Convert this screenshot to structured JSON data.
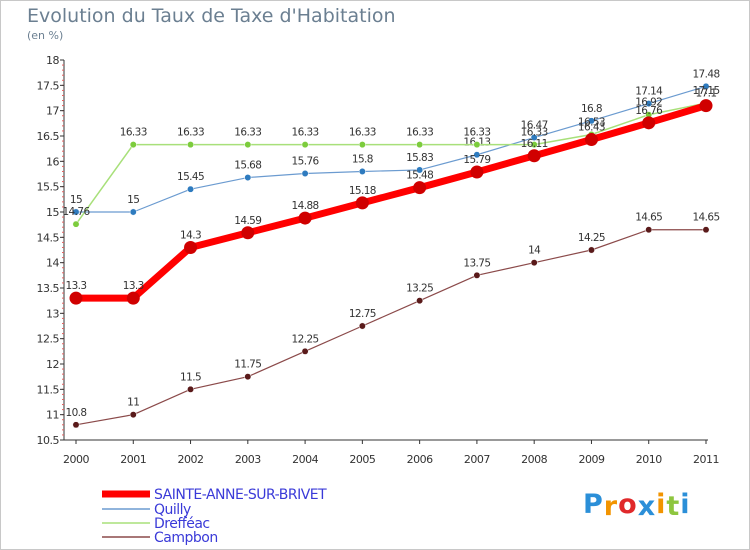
{
  "title": "Evolution du Taux de Taxe d'Habitation",
  "subtitle": "(en %)",
  "logo": {
    "text": "Proxiti",
    "letters": [
      "P",
      "r",
      "o",
      "x",
      "i",
      "t",
      "i"
    ],
    "colors": [
      "#2b8fd8",
      "#f29400",
      "#e0292b",
      "#2b8fd8",
      "#f29400",
      "#8ec63f",
      "#2b8fd8"
    ]
  },
  "chart_data": {
    "type": "line",
    "x": [
      2000,
      2001,
      2002,
      2003,
      2004,
      2005,
      2006,
      2007,
      2008,
      2009,
      2010,
      2011
    ],
    "ylim": [
      10.5,
      18
    ],
    "yticks": [
      10.5,
      11,
      11.5,
      12,
      12.5,
      13,
      13.5,
      14,
      14.5,
      15,
      15.5,
      16,
      16.5,
      17,
      17.5,
      18
    ],
    "grid": false,
    "legend_position": "bottom-left",
    "series": [
      {
        "name": "SAINTE-ANNE-SUR-BRIVET",
        "color": "#ff0000",
        "marker_color": "#d00000",
        "width": 7,
        "values": [
          13.3,
          13.3,
          14.3,
          14.59,
          14.88,
          15.18,
          15.48,
          15.79,
          16.11,
          16.43,
          16.76,
          17.1
        ],
        "labels": [
          "13.3",
          "13.3",
          "14.3",
          "14.59",
          "14.88",
          "15.18",
          "15.48",
          "15.79",
          "16.11",
          "16.43",
          "16.76",
          "17.1"
        ]
      },
      {
        "name": "Quilly",
        "color": "#6b9bd0",
        "marker_color": "#2e7bbf",
        "width": 1.2,
        "values": [
          15,
          15,
          15.45,
          15.68,
          15.76,
          15.8,
          15.83,
          16.13,
          16.47,
          16.8,
          17.14,
          17.48
        ],
        "labels": [
          "15",
          "15",
          "15.45",
          "15.68",
          "15.76",
          "15.8",
          "15.83",
          "16.13",
          "16.47",
          "16.8",
          "17.14",
          "17.48"
        ]
      },
      {
        "name": "Drefféac",
        "color": "#a8e07a",
        "marker_color": "#7ccc3c",
        "width": 1.5,
        "values": [
          14.76,
          16.33,
          16.33,
          16.33,
          16.33,
          16.33,
          16.33,
          16.33,
          16.33,
          16.53,
          16.92,
          17.15
        ],
        "labels": [
          "14.76",
          "16.33",
          "16.33",
          "16.33",
          "16.33",
          "16.33",
          "16.33",
          "16.33",
          "16.33",
          "16.53",
          "16.92",
          "17.15"
        ]
      },
      {
        "name": "Campbon",
        "color": "#8b4a4a",
        "marker_color": "#5a1a1a",
        "width": 1.2,
        "values": [
          10.8,
          11,
          11.5,
          11.75,
          12.25,
          12.75,
          13.25,
          13.75,
          14,
          14.25,
          14.65,
          14.65
        ],
        "labels": [
          "10.8",
          "11",
          "11.5",
          "11.75",
          "12.25",
          "12.75",
          "13.25",
          "13.75",
          "14",
          "14.25",
          "14.65",
          "14.65"
        ]
      }
    ]
  }
}
